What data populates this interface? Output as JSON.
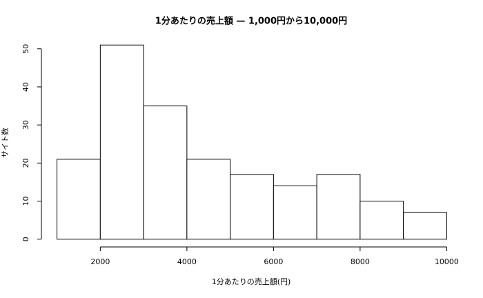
{
  "chart_data": {
    "type": "histogram",
    "title": "1分あたりの売上額 — 1,000円から10,000円",
    "x_label": "1分あたりの売上額(円)",
    "y_label": "サイト数",
    "bins": [
      1000,
      2000,
      3000,
      4000,
      5000,
      6000,
      7000,
      8000,
      9000,
      10000
    ],
    "values": [
      21,
      51,
      35,
      21,
      17,
      14,
      17,
      10,
      7
    ],
    "color": "#ffffff",
    "edge_color": "#000000",
    "xlim": [
      640,
      10360
    ],
    "xticks": [
      2000,
      4000,
      6000,
      8000,
      10000
    ],
    "ylim": [
      -2.04,
      53.04
    ],
    "yticks": [
      0,
      10,
      20,
      30,
      40,
      50
    ]
  }
}
